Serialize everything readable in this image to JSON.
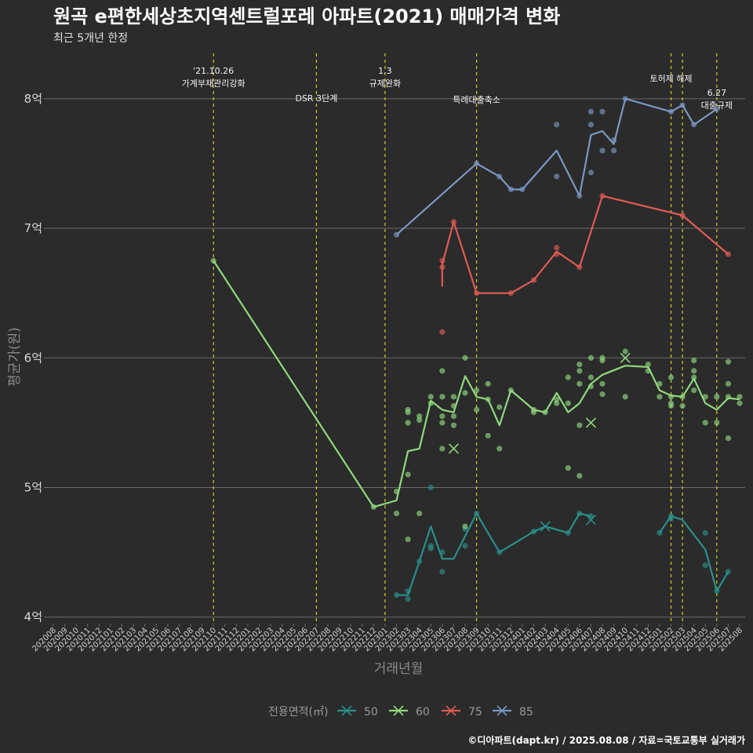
{
  "chart_data": {
    "type": "line",
    "title": "원곡 e편한세상초지역센트럴포레 아파트(2021) 매매가격 변화",
    "subtitle": "최근 5개년 한정",
    "xlabel": "거래년월",
    "ylabel": "평균가(원)",
    "caption": "©디아파트(dapt.kr) / 2025.08.08 / 자료=국토교통부 실거래가",
    "ylim": [
      3.95,
      8.35
    ],
    "yticks": [
      {
        "value": 4,
        "label": "4억"
      },
      {
        "value": 5,
        "label": "5억"
      },
      {
        "value": 6,
        "label": "6억"
      },
      {
        "value": 7,
        "label": "7억"
      },
      {
        "value": 8,
        "label": "8억"
      }
    ],
    "grid": true,
    "legend": {
      "title": "전용면적(㎡)",
      "placement": "bottom"
    },
    "x_categories": [
      "202008",
      "202009",
      "202010",
      "202011",
      "202012",
      "202101",
      "202102",
      "202103",
      "202104",
      "202105",
      "202106",
      "202107",
      "202108",
      "202109",
      "202110",
      "202111",
      "202112",
      "202201",
      "202202",
      "202203",
      "202204",
      "202205",
      "202206",
      "202207",
      "202208",
      "202209",
      "202210",
      "202211",
      "202212",
      "202301",
      "202302",
      "202303",
      "202304",
      "202305",
      "202306",
      "202307",
      "202308",
      "202309",
      "202310",
      "202311",
      "202312",
      "202401",
      "202402",
      "202403",
      "202404",
      "202405",
      "202406",
      "202407",
      "202408",
      "202409",
      "202410",
      "202411",
      "202412",
      "202501",
      "202502",
      "202503",
      "202504",
      "202505",
      "202506",
      "202507",
      "202508"
    ],
    "events": [
      {
        "x": 14,
        "lines": [
          "'21.10.26",
          "가계부채관리강화"
        ]
      },
      {
        "x": 23,
        "lines": [
          "DSR 3단계"
        ]
      },
      {
        "x": 29,
        "lines": [
          "1.3",
          "규제완화"
        ]
      },
      {
        "x": 37,
        "lines": [
          "특례대출축소"
        ]
      },
      {
        "x": 54,
        "lines": [
          "토허제 해제"
        ]
      },
      {
        "x": 55,
        "lines": []
      },
      {
        "x": 58,
        "lines": [
          "6.27",
          "대출규제"
        ]
      }
    ],
    "series": [
      {
        "name": "50",
        "color": "#2a8f8a",
        "line": [
          [
            30,
            4.17
          ],
          [
            31,
            4.17
          ],
          [
            32,
            4.43
          ],
          [
            33,
            4.7
          ],
          [
            34,
            4.45
          ],
          [
            35,
            4.45
          ],
          [
            37,
            4.8
          ],
          [
            39,
            4.5
          ],
          [
            42,
            4.66
          ],
          [
            43,
            4.7
          ],
          [
            45,
            4.65
          ],
          [
            46,
            4.8
          ],
          [
            47,
            4.78
          ],
          [
            null,
            null
          ],
          [
            53,
            4.65
          ],
          [
            54,
            4.78
          ],
          [
            55,
            4.75
          ],
          [
            57,
            4.52
          ],
          [
            58,
            4.2
          ],
          [
            59,
            4.35
          ]
        ],
        "points": [
          [
            30,
            4.17
          ],
          [
            31,
            4.2
          ],
          [
            31,
            4.14
          ],
          [
            32,
            4.43
          ],
          [
            33,
            4.53
          ],
          [
            33,
            4.55
          ],
          [
            33,
            5.0
          ],
          [
            34,
            4.35
          ],
          [
            34,
            4.5
          ],
          [
            36,
            4.68
          ],
          [
            36,
            4.55
          ],
          [
            37,
            4.8
          ],
          [
            39,
            4.5
          ],
          [
            42,
            4.66
          ],
          [
            45,
            4.65
          ],
          [
            46,
            4.8
          ],
          [
            47,
            4.78
          ],
          [
            53,
            4.65
          ],
          [
            54,
            4.78
          ],
          [
            54,
            4.76
          ],
          [
            57,
            4.4
          ],
          [
            57,
            4.65
          ],
          [
            58,
            4.2
          ],
          [
            59,
            4.35
          ]
        ],
        "crosses": [
          [
            43,
            4.7
          ],
          [
            47,
            4.75
          ]
        ]
      },
      {
        "name": "60",
        "color": "#8fd97e",
        "line": [
          [
            14,
            6.75
          ],
          [
            28,
            4.85
          ],
          [
            30,
            4.9
          ],
          [
            31,
            5.28
          ],
          [
            32,
            5.3
          ],
          [
            33,
            5.67
          ],
          [
            34,
            5.6
          ],
          [
            35,
            5.58
          ],
          [
            36,
            5.86
          ],
          [
            37,
            5.7
          ],
          [
            38,
            5.68
          ],
          [
            39,
            5.48
          ],
          [
            40,
            5.75
          ],
          [
            42,
            5.6
          ],
          [
            43,
            5.58
          ],
          [
            44,
            5.73
          ],
          [
            45,
            5.58
          ],
          [
            46,
            5.65
          ],
          [
            47,
            5.8
          ],
          [
            48,
            5.87
          ],
          [
            50,
            5.94
          ],
          [
            52,
            5.93
          ],
          [
            53,
            5.75
          ],
          [
            54,
            5.71
          ],
          [
            55,
            5.7
          ],
          [
            56,
            5.84
          ],
          [
            57,
            5.65
          ],
          [
            58,
            5.6
          ],
          [
            59,
            5.69
          ],
          [
            60,
            5.68
          ]
        ],
        "points": [
          [
            14,
            6.75
          ],
          [
            28,
            4.85
          ],
          [
            30,
            4.97
          ],
          [
            30,
            4.8
          ],
          [
            31,
            5.6
          ],
          [
            31,
            5.58
          ],
          [
            31,
            5.5
          ],
          [
            31,
            5.1
          ],
          [
            31,
            4.6
          ],
          [
            32,
            5.55
          ],
          [
            32,
            5.52
          ],
          [
            32,
            4.8
          ],
          [
            33,
            5.7
          ],
          [
            33,
            5.65
          ],
          [
            34,
            5.9
          ],
          [
            34,
            5.7
          ],
          [
            34,
            5.55
          ],
          [
            34,
            5.5
          ],
          [
            34,
            5.3
          ],
          [
            35,
            5.7
          ],
          [
            35,
            5.63
          ],
          [
            35,
            5.55
          ],
          [
            35,
            5.48
          ],
          [
            36,
            6.0
          ],
          [
            36,
            5.73
          ],
          [
            36,
            4.7
          ],
          [
            37,
            5.75
          ],
          [
            37,
            5.6
          ],
          [
            38,
            5.8
          ],
          [
            38,
            5.68
          ],
          [
            38,
            5.4
          ],
          [
            39,
            5.62
          ],
          [
            39,
            5.3
          ],
          [
            40,
            5.75
          ],
          [
            42,
            5.6
          ],
          [
            42,
            5.58
          ],
          [
            43,
            5.58
          ],
          [
            44,
            5.68
          ],
          [
            44,
            5.65
          ],
          [
            45,
            5.85
          ],
          [
            45,
            5.65
          ],
          [
            45,
            5.15
          ],
          [
            46,
            5.95
          ],
          [
            46,
            5.9
          ],
          [
            46,
            5.8
          ],
          [
            46,
            5.48
          ],
          [
            46,
            5.09
          ],
          [
            47,
            6.0
          ],
          [
            47,
            5.85
          ],
          [
            47,
            5.78
          ],
          [
            48,
            6.0
          ],
          [
            48,
            5.98
          ],
          [
            48,
            5.8
          ],
          [
            48,
            5.72
          ],
          [
            50,
            6.05
          ],
          [
            50,
            5.7
          ],
          [
            52,
            5.95
          ],
          [
            52,
            5.9
          ],
          [
            53,
            5.8
          ],
          [
            53,
            5.7
          ],
          [
            54,
            5.85
          ],
          [
            54,
            5.7
          ],
          [
            54,
            5.65
          ],
          [
            54,
            5.63
          ],
          [
            55,
            5.7
          ],
          [
            55,
            5.63
          ],
          [
            56,
            5.98
          ],
          [
            56,
            5.9
          ],
          [
            56,
            5.85
          ],
          [
            56,
            5.75
          ],
          [
            57,
            5.7
          ],
          [
            57,
            5.5
          ],
          [
            58,
            5.7
          ],
          [
            58,
            5.5
          ],
          [
            59,
            5.97
          ],
          [
            59,
            5.8
          ],
          [
            59,
            5.7
          ],
          [
            59,
            5.38
          ],
          [
            60,
            5.7
          ],
          [
            60,
            5.65
          ]
        ],
        "crosses": [
          [
            35,
            5.3
          ],
          [
            47,
            5.5
          ],
          [
            50,
            6.0
          ]
        ]
      },
      {
        "name": "75",
        "color": "#e05a55",
        "line": [
          [
            34,
            6.55
          ],
          [
            34,
            6.72
          ],
          [
            35,
            7.05
          ],
          [
            37,
            6.5
          ],
          [
            40,
            6.5
          ],
          [
            42,
            6.6
          ],
          [
            44,
            6.82
          ],
          [
            46,
            6.7
          ],
          [
            48,
            7.25
          ],
          [
            55,
            7.1
          ],
          [
            59,
            6.8
          ]
        ],
        "points": [
          [
            34,
            6.75
          ],
          [
            34,
            6.7
          ],
          [
            34,
            6.2
          ],
          [
            35,
            7.05
          ],
          [
            37,
            6.5
          ],
          [
            40,
            6.5
          ],
          [
            42,
            6.6
          ],
          [
            44,
            6.85
          ],
          [
            44,
            6.8
          ],
          [
            46,
            6.7
          ],
          [
            48,
            7.25
          ],
          [
            55,
            7.1
          ],
          [
            59,
            6.8
          ]
        ],
        "crosses": []
      },
      {
        "name": "85",
        "color": "#7b97c2",
        "line": [
          [
            30,
            6.95
          ],
          [
            37,
            7.5
          ],
          [
            39,
            7.4
          ],
          [
            40,
            7.3
          ],
          [
            41,
            7.3
          ],
          [
            44,
            7.6
          ],
          [
            46,
            7.25
          ],
          [
            47,
            7.72
          ],
          [
            48,
            7.75
          ],
          [
            49,
            7.65
          ],
          [
            50,
            8.0
          ],
          [
            54,
            7.9
          ],
          [
            55,
            7.95
          ],
          [
            56,
            7.8
          ],
          [
            58,
            7.92
          ]
        ],
        "points": [
          [
            30,
            6.95
          ],
          [
            37,
            7.5
          ],
          [
            39,
            7.4
          ],
          [
            40,
            7.3
          ],
          [
            41,
            7.3
          ],
          [
            44,
            7.8
          ],
          [
            44,
            7.4
          ],
          [
            46,
            7.25
          ],
          [
            47,
            7.9
          ],
          [
            47,
            7.8
          ],
          [
            47,
            7.43
          ],
          [
            48,
            7.9
          ],
          [
            48,
            7.6
          ],
          [
            49,
            7.6
          ],
          [
            49,
            7.68
          ],
          [
            50,
            8.0
          ],
          [
            54,
            7.9
          ],
          [
            55,
            7.95
          ],
          [
            56,
            7.8
          ],
          [
            58,
            7.92
          ]
        ],
        "crosses": []
      }
    ]
  }
}
